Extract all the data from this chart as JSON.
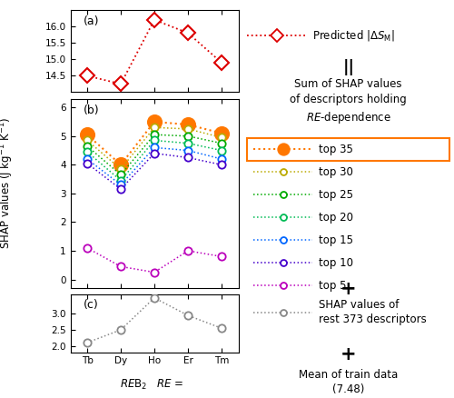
{
  "x_labels": [
    "Tb",
    "Dy",
    "Ho",
    "Er",
    "Tm"
  ],
  "x_positions": [
    0,
    1,
    2,
    3,
    4
  ],
  "panel_a": {
    "values": [
      14.5,
      14.25,
      16.2,
      15.8,
      14.9
    ],
    "color": "#dd0000",
    "marker": "D",
    "markersize": 8,
    "ylim": [
      14.0,
      16.5
    ],
    "yticks": [
      14.5,
      15.0,
      15.5,
      16.0
    ]
  },
  "panel_b": {
    "series": [
      {
        "values": [
          5.05,
          4.0,
          5.5,
          5.4,
          5.1
        ],
        "color": "#ff7700",
        "filled": true,
        "markersize": 11,
        "label": "top 35"
      },
      {
        "values": [
          4.85,
          3.85,
          5.3,
          5.25,
          4.95
        ],
        "color": "#bbaa00",
        "filled": false,
        "markersize": 6,
        "label": "top 30"
      },
      {
        "values": [
          4.65,
          3.65,
          5.05,
          5.0,
          4.75
        ],
        "color": "#00aa00",
        "filled": false,
        "markersize": 6,
        "label": "top 25"
      },
      {
        "values": [
          4.45,
          3.45,
          4.85,
          4.75,
          4.5
        ],
        "color": "#00bb55",
        "filled": false,
        "markersize": 6,
        "label": "top 20"
      },
      {
        "values": [
          4.2,
          3.3,
          4.6,
          4.5,
          4.2
        ],
        "color": "#0066ff",
        "filled": false,
        "markersize": 6,
        "label": "top 15"
      },
      {
        "values": [
          4.05,
          3.15,
          4.4,
          4.25,
          4.0
        ],
        "color": "#4400cc",
        "filled": false,
        "markersize": 6,
        "label": "top 10"
      },
      {
        "values": [
          1.1,
          0.45,
          0.25,
          1.0,
          0.8
        ],
        "color": "#bb00bb",
        "filled": false,
        "markersize": 6,
        "label": "top 5"
      }
    ],
    "ylim": [
      -0.3,
      6.3
    ],
    "yticks": [
      0,
      1,
      2,
      3,
      4,
      5,
      6
    ]
  },
  "panel_c": {
    "values": [
      2.1,
      2.5,
      3.5,
      2.95,
      2.55
    ],
    "color": "#888888",
    "markersize": 6,
    "ylim": [
      1.8,
      3.6
    ],
    "yticks": [
      2.0,
      2.5,
      3.0
    ]
  },
  "background_color": "#ffffff"
}
